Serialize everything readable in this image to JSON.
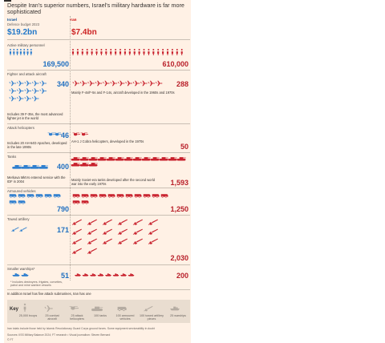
{
  "title": "Despite Iran's superior numbers, Israel's military hardware is far more sophisticated",
  "sides": {
    "israel": "Israel",
    "iran": "Iran"
  },
  "budget": {
    "label": "Defence budget 2023",
    "israel": "$19.2bn",
    "iran": "$7.4bn"
  },
  "colors": {
    "israel": "#2f7fcf",
    "iran": "#c8202c",
    "background": "#fff1e5",
    "key_icon": "#b5aca2"
  },
  "categories": {
    "personnel": {
      "label": "Active military personnel",
      "israel": "169,500",
      "iran": "610,000"
    },
    "aircraft": {
      "label": "Fighter and attack aircraft",
      "israel": "340",
      "iran": "288",
      "israel_note": "Includes 39 F-35s, the most advanced fighter jet in the world",
      "iran_note": "Mainly F-4s/F-5s and F-14s, aircraft developed in the 1960s and 1970s"
    },
    "helicopters": {
      "label": "Attack helicopters",
      "israel": "46",
      "iran": "50",
      "israel_note": "Includes 20 AH-64D Apaches, developed in the late 1990s",
      "iran_note": "AH-1 J Cobra helicopters, developed in the 1970s"
    },
    "tanks": {
      "label": "Tanks",
      "israel": "400",
      "iran": "1,593",
      "israel_note": "Merkava MkIVs entered service with the IDF in 2004",
      "iran_note": "Mainly Soviet-era tanks developed after the second world war into the early 1970s"
    },
    "armoured": {
      "label": "Armoured vehicles",
      "israel": "790",
      "iran": "1,250"
    },
    "artillery": {
      "label": "Towed artillery",
      "israel": "171",
      "iran": "2,030"
    },
    "warships": {
      "label": "Smaller warships*",
      "israel": "51",
      "iran": "200",
      "israel_note": "* Includes destroyers, frigates, corvettes, patrol and mine warfare vessels"
    }
  },
  "submarine_note": "In addition Israel has five attack submarines, Iran has one",
  "key": {
    "title": "Key",
    "items": [
      "25,000 troops",
      "25 combat aircraft",
      "25 attack helicopters",
      "100 tanks",
      "100 armoured vehicles",
      "100 towed artillery pieces",
      "25 warships"
    ]
  },
  "footer": {
    "line1": "Iran totals include those held by Islamic Revolutionary Guard Corps ground forces. Some equipment serviceability in doubt",
    "line2": "Sources: IISS Military Balance 2024; FT research • Visual journalism: Steven Bernard",
    "line3": "© FT"
  },
  "chart_data": {
    "type": "table",
    "title": "Despite Iran's superior numbers, Israel's military hardware is far more sophisticated",
    "columns": [
      "Israel",
      "Iran"
    ],
    "rows": [
      {
        "category": "Defence budget 2023",
        "israel": 19.2,
        "iran": 7.4,
        "unit": "$bn"
      },
      {
        "category": "Active military personnel",
        "israel": 169500,
        "iran": 610000
      },
      {
        "category": "Fighter and attack aircraft",
        "israel": 340,
        "iran": 288
      },
      {
        "category": "Attack helicopters",
        "israel": 46,
        "iran": 50
      },
      {
        "category": "Tanks",
        "israel": 400,
        "iran": 1593
      },
      {
        "category": "Armoured vehicles",
        "israel": 790,
        "iran": 1250
      },
      {
        "category": "Towed artillery",
        "israel": 171,
        "iran": 2030
      },
      {
        "category": "Smaller warships",
        "israel": 51,
        "iran": 200
      }
    ],
    "icon_units": {
      "personnel": 25000,
      "aircraft": 25,
      "helicopters": 25,
      "tanks": 100,
      "armoured": 100,
      "artillery": 100,
      "warships": 25
    }
  }
}
